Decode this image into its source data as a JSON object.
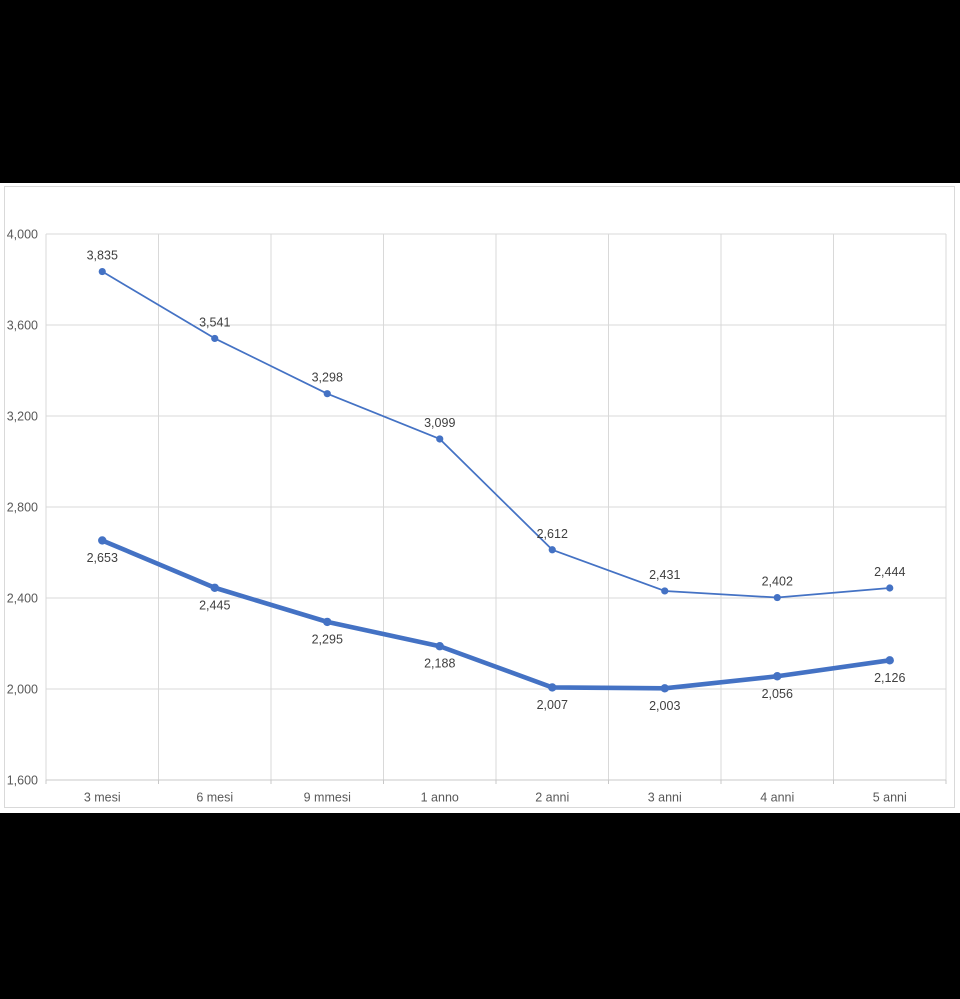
{
  "window": {
    "background_color": "#000000",
    "panel_background": "#ffffff"
  },
  "chart_data": {
    "type": "line",
    "title": "",
    "xlabel": "",
    "ylabel": "",
    "categories": [
      "3 mesi",
      "6 mesi",
      "9 mmesi",
      "1 anno",
      "2 anni",
      "3 anni",
      "4 anni",
      "5 anni"
    ],
    "series": [
      {
        "name": "upper-thin-series",
        "values": [
          3835,
          3541,
          3298,
          3099,
          2612,
          2431,
          2402,
          2444
        ],
        "weight": "thin",
        "label_position": "above"
      },
      {
        "name": "lower-thick-series",
        "values": [
          2653,
          2445,
          2295,
          2188,
          2007,
          2003,
          2056,
          2126
        ],
        "weight": "thick",
        "label_position": "below"
      }
    ],
    "ylim": [
      1600,
      4000
    ],
    "ytick_step": 400,
    "ytick_labels": [
      "1,600",
      "2,000",
      "2,400",
      "2,800",
      "3,200",
      "3,600",
      "4,000"
    ],
    "grid": true,
    "legend": "none",
    "colors": {
      "line": "#4472C4",
      "marker": "#4472C4",
      "gridline": "#D9D9D9",
      "axis_line": "#C8C8C8",
      "data_label": "#404040",
      "axis_label": "#595959",
      "chart_border": "#D9D9D9"
    }
  }
}
